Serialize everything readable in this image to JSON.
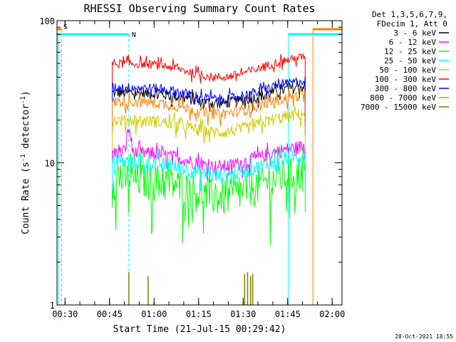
{
  "chart_data": {
    "type": "line",
    "title": "RHESSI Observing Summary Count Rates",
    "xlabel": "Start Time (21-Jul-15 00:29:42)",
    "ylabel_main": "Count Rate (s",
    "ylabel_sup": "-1",
    "ylabel_rest": " detector",
    "ylabel_end": ")",
    "yscale": "log",
    "ylim": [
      1,
      100
    ],
    "xlim_minutes": [
      -2.7,
      93.3
    ],
    "y_ticks": [
      {
        "value": 1,
        "label": "1"
      },
      {
        "value": 10,
        "label": "10"
      },
      {
        "value": 100,
        "label": "100"
      }
    ],
    "x_ticks": [
      {
        "label": "00:30",
        "minutes": 0
      },
      {
        "label": "00:45",
        "minutes": 15
      },
      {
        "label": "01:00",
        "minutes": 30
      },
      {
        "label": "01:15",
        "minutes": 45
      },
      {
        "label": "01:30",
        "minutes": 60
      },
      {
        "label": "01:45",
        "minutes": 75
      },
      {
        "label": "02:00",
        "minutes": 90
      }
    ],
    "legend_header": [
      "Det 1,3,5,6,7,9,",
      "FDecim 1, Att 0"
    ],
    "legend_position": "right",
    "series": [
      {
        "name": "3 - 6 keV",
        "color": "#000000",
        "level": 31,
        "jitter": 0.09,
        "dip": 0.15
      },
      {
        "name": "6 - 12 keV",
        "color": "#ff00ff",
        "level": 11.8,
        "jitter": 0.11,
        "dip": 0.2
      },
      {
        "name": "12 - 25 keV",
        "color": "#00ff00",
        "level": 7.8,
        "jitter": 0.3,
        "dip": 0.25
      },
      {
        "name": "25 - 50 keV",
        "color": "#00ffff",
        "level": 10.2,
        "jitter": 0.12,
        "dip": 0.2
      },
      {
        "name": "50 - 100 keV",
        "color": "#cccc00",
        "level": 20,
        "jitter": 0.1,
        "dip": 0.18
      },
      {
        "name": "100 - 300 keV",
        "color": "#ff0000",
        "level": 50,
        "jitter": 0.07,
        "dip": 0.2
      },
      {
        "name": "300 - 800 keV",
        "color": "#0000ff",
        "level": 34,
        "jitter": 0.08,
        "dip": 0.17
      },
      {
        "name": "800 - 7000 keV",
        "color": "#ff8000",
        "level": 27,
        "jitter": 0.09,
        "dip": 0.18
      },
      {
        "name": "7000 - 15000 keV",
        "color": "#808000",
        "level": 1,
        "jitter": 0,
        "dip": 0
      }
    ],
    "data_window_minutes": [
      15.9,
      80.9
    ],
    "hard_xray_spikes_minutes": [
      21.5,
      28,
      60.5,
      61.5,
      62.5,
      63.2
    ],
    "hard_xray_spike_peaks": [
      1.7,
      1.6,
      1.65,
      1.7,
      1.6,
      1.65
    ],
    "flags": {
      "saa": {
        "label": "S",
        "color": "#ff8000",
        "start_minutes": -2.7,
        "end_minutes": -1.2
      },
      "night": {
        "label": "N",
        "color": "#00ffff",
        "start_minutes": -2.7,
        "end_minutes": 21.5
      },
      "night2": {
        "color": "#00ffff",
        "start_minutes": 75.2,
        "end_minutes": 93.3
      },
      "saa2": {
        "color": "#ff8000",
        "start_minutes": 83.5,
        "end_minutes": 93.3
      }
    }
  },
  "footer": {
    "timestamp": "28-Oct-2021 18:55"
  }
}
